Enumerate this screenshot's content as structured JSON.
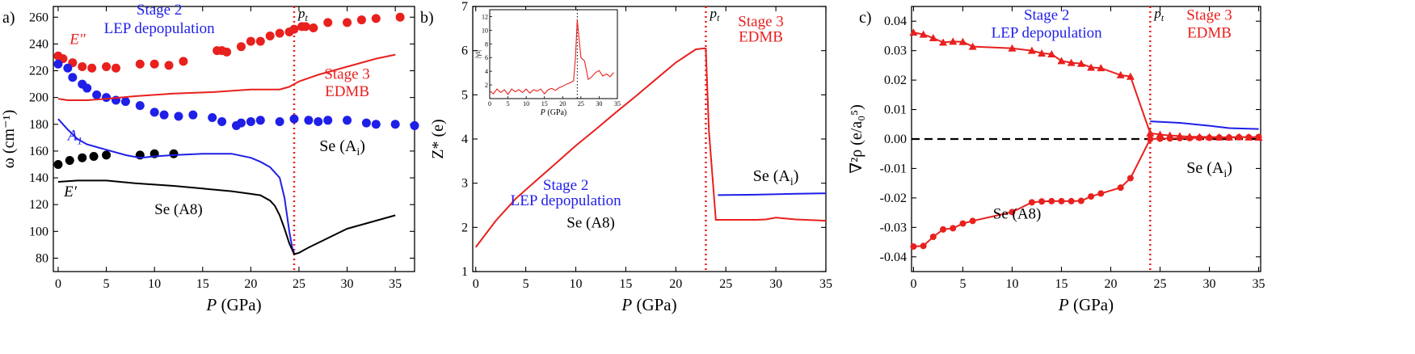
{
  "colors": {
    "red": "#e8201e",
    "blue": "#1f1fe8",
    "black": "#000000",
    "dash": "#000000"
  },
  "chart_data": [
    {
      "panel": "a)",
      "type": "line+scatter",
      "xlabel_italic": "P",
      "xlabel_rest": " (GPa)",
      "ylabel": "ω (cm⁻¹)",
      "xlim": [
        -0.5,
        37
      ],
      "ylim": [
        70,
        268
      ],
      "xticks": [
        0,
        5,
        10,
        15,
        20,
        25,
        30,
        35
      ],
      "yticks": [
        80,
        100,
        120,
        140,
        160,
        180,
        200,
        220,
        240,
        260
      ],
      "transition_x": 24.5,
      "transition_label": "pt",
      "annotations": [
        {
          "text": "Stage 2",
          "color": "blue",
          "x": 10.5,
          "y": 262
        },
        {
          "text": "LEP depopulation",
          "color": "blue",
          "x": 10.5,
          "y": 248
        },
        {
          "text": "Stage 3",
          "color": "red",
          "x": 30,
          "y": 214
        },
        {
          "text": "EDMB",
          "color": "red",
          "x": 30,
          "y": 201
        },
        {
          "text": "Se (A8)",
          "color": "black",
          "x": 12.5,
          "y": 113
        },
        {
          "text": "Se (Ai)",
          "color": "black",
          "x": 29.5,
          "y": 160
        },
        {
          "text": "E″",
          "color": "red",
          "x": 1.2,
          "y": 240
        },
        {
          "text": "A1",
          "color": "blue",
          "x": 1.0,
          "y": 168
        },
        {
          "text": "E′",
          "color": "black",
          "x": 0.6,
          "y": 126
        }
      ],
      "series": [
        {
          "name": "E″ exp",
          "kind": "scatter",
          "color": "red",
          "x": [
            0,
            0.5,
            1.5,
            2.5,
            3.5,
            5,
            6,
            8.5,
            10,
            11.5,
            13,
            16.5,
            17,
            17.5,
            19,
            20,
            21,
            22,
            23,
            24,
            24.5,
            25.3,
            25.7,
            26.5,
            28,
            30,
            31.5,
            33,
            35.5
          ],
          "y": [
            231,
            229,
            226,
            223,
            222,
            223,
            222,
            225,
            225,
            224,
            227,
            235,
            235,
            234,
            238,
            242,
            242,
            246,
            248,
            249,
            251,
            253,
            253,
            252,
            256,
            256,
            258,
            259,
            260
          ]
        },
        {
          "name": "A1 exp",
          "kind": "scatter",
          "color": "blue",
          "x": [
            0,
            1,
            1.5,
            2.5,
            3,
            4,
            5,
            6,
            7,
            8.5,
            10,
            11,
            12.5,
            14,
            16,
            17,
            18.5,
            19,
            20,
            21,
            23,
            24.5,
            26,
            27,
            28,
            30,
            32,
            33,
            35,
            37
          ],
          "y": [
            225,
            222,
            215,
            210,
            207,
            202,
            200,
            198,
            197,
            194,
            189,
            187,
            186,
            187,
            185,
            182,
            179,
            181,
            182,
            183,
            182,
            184,
            183,
            182,
            183,
            183,
            181,
            180,
            180,
            179
          ]
        },
        {
          "name": "E′ exp",
          "kind": "scatter",
          "color": "black",
          "x": [
            0,
            1.2,
            2.5,
            3.7,
            5,
            8.5,
            10,
            12
          ],
          "y": [
            150,
            153,
            155,
            156,
            157,
            157,
            158,
            158
          ]
        },
        {
          "name": "E″ calc",
          "kind": "line",
          "color": "red",
          "x": [
            0,
            1,
            3,
            5,
            8,
            12,
            16,
            20,
            22,
            23,
            24,
            25,
            27,
            30,
            33,
            35
          ],
          "y": [
            199,
            198,
            198,
            199,
            201,
            203,
            204,
            206,
            206,
            206,
            208,
            212,
            217,
            223,
            229,
            232
          ]
        },
        {
          "name": "A1 calc",
          "kind": "line",
          "color": "blue",
          "x": [
            0,
            1,
            2,
            3,
            5,
            7,
            8.5,
            10,
            12,
            15,
            18,
            20,
            21,
            22,
            23,
            23.5,
            24,
            24.3,
            24.5
          ],
          "y": [
            184,
            176,
            169,
            165,
            161,
            157,
            155,
            156,
            157,
            158,
            158,
            155,
            152,
            148,
            140,
            125,
            100,
            88,
            84
          ]
        },
        {
          "name": "E′ calc",
          "kind": "line",
          "color": "black",
          "x": [
            0,
            2,
            5,
            8,
            12,
            15,
            18,
            20,
            21,
            22,
            22.5,
            23,
            23.5,
            24,
            24.5,
            25,
            26,
            28,
            30,
            32,
            35
          ],
          "y": [
            137,
            138,
            138,
            136,
            134,
            132,
            130,
            128,
            127,
            123,
            119,
            112,
            102,
            91,
            83,
            84,
            88,
            95,
            102,
            106,
            112
          ]
        }
      ]
    },
    {
      "panel": "b)",
      "type": "line",
      "xlabel_italic": "P",
      "xlabel_rest": " (GPa)",
      "ylabel": "Z* (e)",
      "xlim": [
        -0.3,
        35
      ],
      "ylim": [
        1,
        7
      ],
      "xticks": [
        0,
        5,
        10,
        15,
        20,
        25,
        30,
        35
      ],
      "yticks": [
        1,
        2,
        3,
        4,
        5,
        6,
        7
      ],
      "transition_x": 23,
      "transition_label": "pt",
      "annotations": [
        {
          "text": "Stage 3",
          "color": "red",
          "x": 28.5,
          "y": 6.55
        },
        {
          "text": "EDMB",
          "color": "red",
          "x": 28.5,
          "y": 6.2
        },
        {
          "text": "Stage 2",
          "color": "blue",
          "x": 9,
          "y": 2.85
        },
        {
          "text": "LEP depopulation",
          "color": "blue",
          "x": 9,
          "y": 2.5
        },
        {
          "text": "Se (A8)",
          "color": "black",
          "x": 11.5,
          "y": 2.0
        },
        {
          "text": "Se (Ai)",
          "color": "black",
          "x": 30,
          "y": 3.05
        }
      ],
      "series": [
        {
          "name": "Z* red",
          "kind": "line",
          "color": "red",
          "x": [
            0,
            2,
            4,
            6,
            8,
            10,
            12,
            14,
            16,
            18,
            20,
            22,
            22.8,
            23,
            23.3,
            24,
            26,
            28,
            29,
            30,
            32,
            35
          ],
          "y": [
            1.55,
            2.15,
            2.65,
            3.05,
            3.45,
            3.85,
            4.22,
            4.6,
            4.97,
            5.35,
            5.73,
            6.03,
            6.05,
            6.05,
            4.2,
            2.17,
            2.17,
            2.17,
            2.18,
            2.22,
            2.18,
            2.15
          ]
        },
        {
          "name": "Z* blue",
          "kind": "line",
          "color": "blue",
          "x": [
            24.2,
            28,
            32,
            35
          ],
          "y": [
            2.73,
            2.74,
            2.76,
            2.77
          ]
        }
      ],
      "inset": {
        "ylabel": "|γi|",
        "xlabel_italic": "P",
        "xlabel_rest": " (GPa)",
        "xlim": [
          0,
          35
        ],
        "ylim": [
          0,
          13
        ],
        "xticks": [
          0,
          5,
          10,
          15,
          20,
          25,
          30,
          35
        ],
        "yticks": [
          2,
          4,
          6,
          8,
          10,
          12
        ],
        "transition_x": 24,
        "series": {
          "x": [
            0,
            1,
            2,
            3,
            4,
            5,
            6,
            7,
            8,
            9,
            10,
            11,
            12,
            13,
            14,
            15,
            16,
            17,
            18,
            19,
            20,
            21,
            22,
            23,
            23.5,
            24,
            25,
            26,
            27,
            28,
            29,
            30,
            31,
            32,
            33,
            34
          ],
          "y": [
            1.1,
            0.7,
            1.4,
            0.9,
            1.3,
            0.6,
            1.4,
            1.0,
            1.3,
            0.9,
            1.4,
            0.8,
            1.3,
            1.1,
            1.4,
            0.7,
            1.3,
            1.5,
            1.2,
            1.6,
            1.8,
            2.1,
            2.3,
            2.6,
            6.0,
            11.5,
            6.0,
            5.5,
            2.8,
            3.2,
            3.8,
            4.1,
            3.3,
            3.6,
            3.2,
            3.8
          ]
        }
      }
    },
    {
      "panel": "c)",
      "type": "line",
      "xlabel_italic": "P",
      "xlabel_rest": " (GPa)",
      "ylabel": "∇²ρ (e/a₀⁵)",
      "xlim": [
        -0.2,
        35.2
      ],
      "ylim": [
        -0.045,
        0.045
      ],
      "xticks": [
        0,
        5,
        10,
        15,
        20,
        25,
        30,
        35
      ],
      "yticks": [
        -0.04,
        -0.03,
        -0.02,
        -0.01,
        0.0,
        0.01,
        0.02,
        0.03,
        0.04
      ],
      "ytick_labels": [
        "-0.04",
        "-0.03",
        "-0.02",
        "-0.01",
        "0.00",
        "0.01",
        "0.02",
        "0.03",
        "0.04"
      ],
      "transition_x": 24,
      "transition_label": "pt",
      "annotations": [
        {
          "text": "Stage 2",
          "color": "blue",
          "x": 13.5,
          "y": 0.0405
        },
        {
          "text": "LEP depopulation",
          "color": "blue",
          "x": 13.5,
          "y": 0.0345
        },
        {
          "text": "Stage 3",
          "color": "red",
          "x": 30,
          "y": 0.0405
        },
        {
          "text": "EDMB",
          "color": "red",
          "x": 30,
          "y": 0.0345
        },
        {
          "text": "Se (A8)",
          "color": "black",
          "x": 10.5,
          "y": -0.027
        },
        {
          "text": "Se (Ai)",
          "color": "black",
          "x": 30,
          "y": -0.0115
        }
      ],
      "series": [
        {
          "name": "upper (triangles)",
          "kind": "line+triangle",
          "color": "red",
          "x": [
            0,
            1,
            2,
            3,
            4,
            5,
            6,
            10,
            12,
            13,
            14,
            15,
            16,
            17,
            18,
            19,
            21,
            22,
            24,
            25,
            26,
            27,
            28,
            29,
            30,
            31,
            32,
            33,
            34,
            35
          ],
          "y": [
            0.0362,
            0.0355,
            0.0343,
            0.0328,
            0.0331,
            0.033,
            0.0314,
            0.0308,
            0.03,
            0.0291,
            0.0288,
            0.0265,
            0.0259,
            0.0256,
            0.0243,
            0.0241,
            0.0217,
            0.0212,
            0.002,
            0.0015,
            0.0012,
            0.001,
            0.0008,
            0.0007,
            0.0007,
            0.0006,
            0.0006,
            0.0007,
            0.0006,
            0.0005
          ]
        },
        {
          "name": "lower (circles)",
          "kind": "line+circle",
          "color": "red",
          "x": [
            0,
            1,
            2,
            3,
            4,
            5,
            6,
            10,
            12,
            13,
            14,
            15,
            16,
            17,
            18,
            19,
            21,
            22,
            24,
            25,
            26,
            27,
            28,
            29,
            30,
            31,
            32,
            33,
            34,
            35
          ],
          "y": [
            -0.0365,
            -0.0363,
            -0.0332,
            -0.0307,
            -0.0303,
            -0.0287,
            -0.0278,
            -0.0248,
            -0.0215,
            -0.0212,
            -0.0211,
            -0.0211,
            -0.0211,
            -0.021,
            -0.0195,
            -0.0185,
            -0.0165,
            -0.0133,
            0.0,
            0.0001,
            0.0002,
            0.0003,
            0.0003,
            0.0004,
            0.0004,
            0.0005,
            0.0005,
            0.0006,
            0.0006,
            0.0007
          ]
        },
        {
          "name": "blue Ai",
          "kind": "line",
          "color": "blue",
          "x": [
            24,
            27,
            30,
            32,
            35
          ],
          "y": [
            0.006,
            0.0055,
            0.0045,
            0.0037,
            0.0034
          ]
        }
      ]
    }
  ]
}
